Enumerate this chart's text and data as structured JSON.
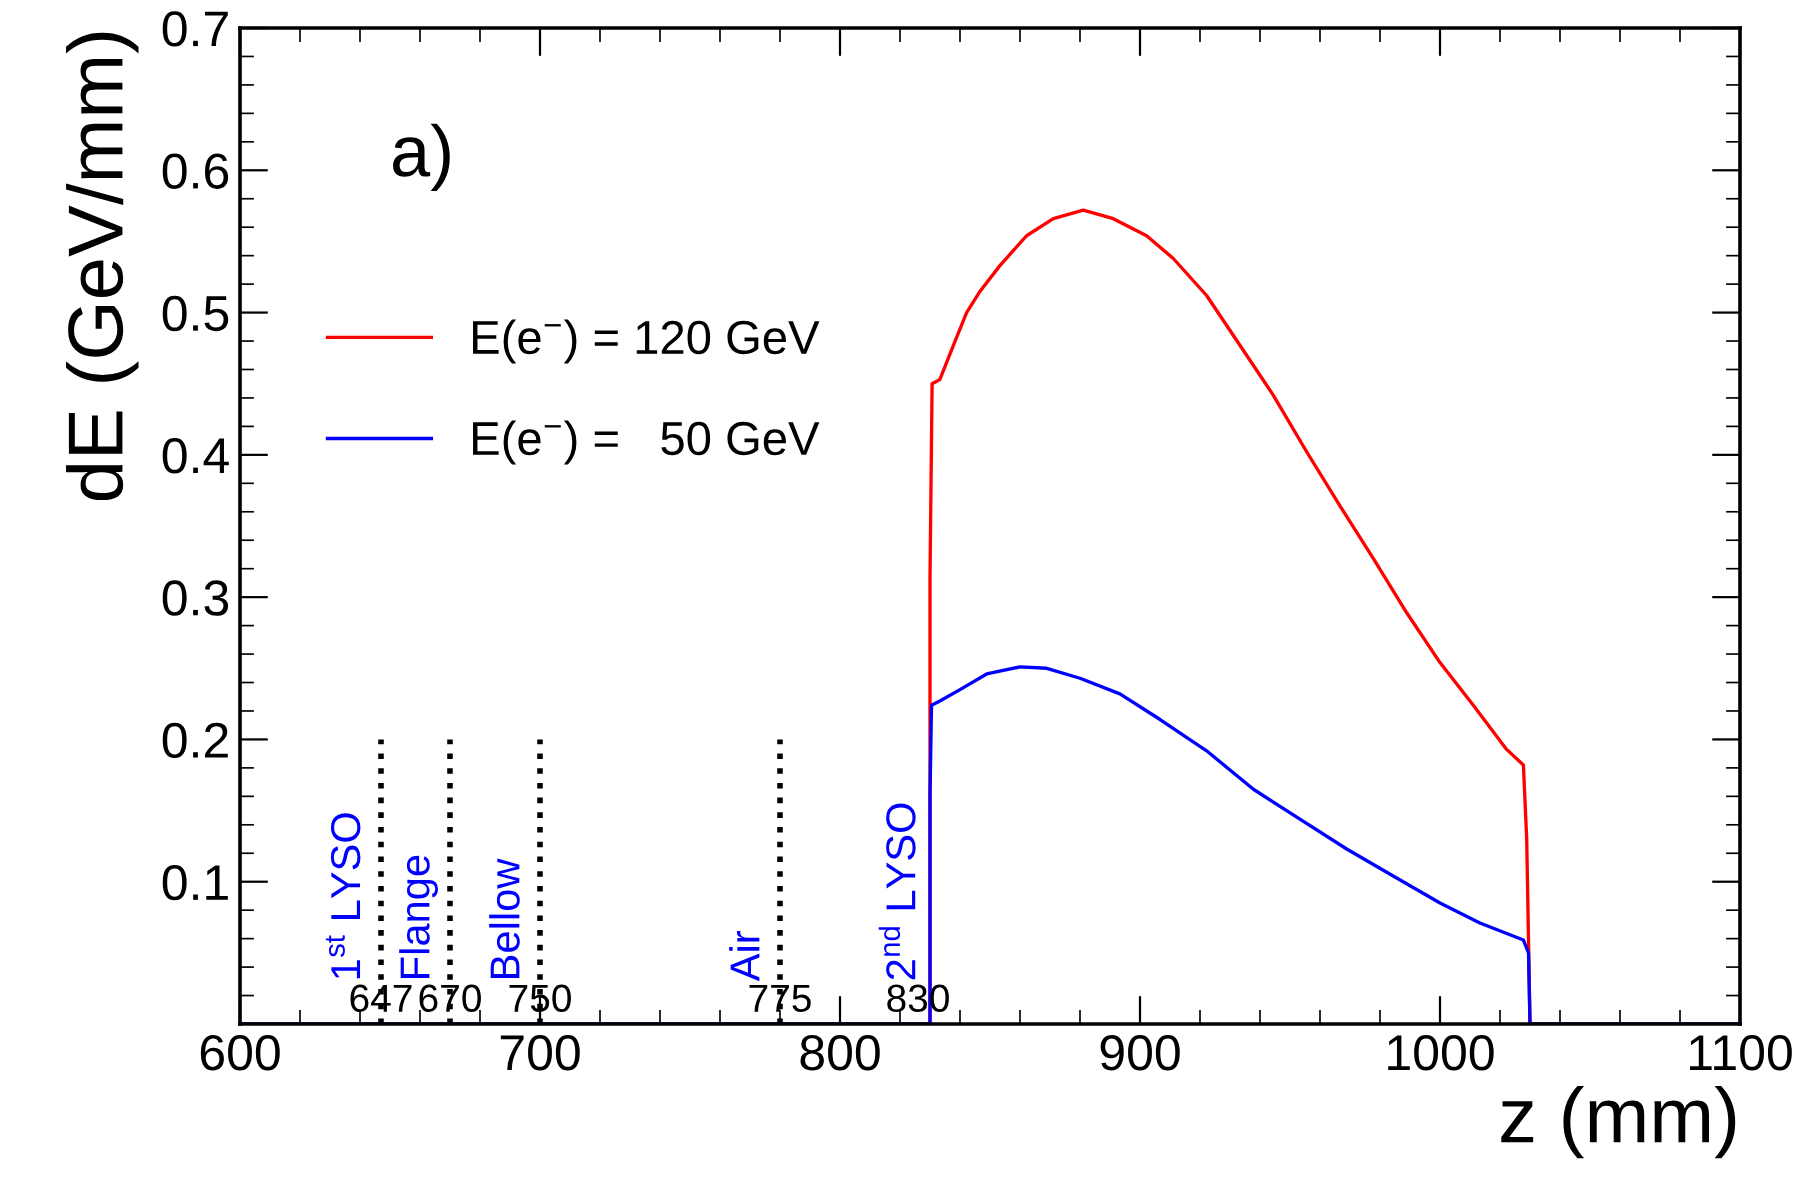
{
  "chart_data": {
    "type": "line",
    "xlabel": "z (mm)",
    "ylabel": "dE (GeV/mm)",
    "xlim": [
      600,
      1100
    ],
    "ylim": [
      0,
      0.7
    ],
    "xticks": [
      600,
      700,
      800,
      900,
      1000,
      1100
    ],
    "yticks": [
      0.1,
      0.2,
      0.3,
      0.4,
      0.5,
      0.6,
      0.7
    ],
    "grid": false,
    "legend": "top left",
    "marker": "none",
    "line_style": "solid",
    "series": [
      {
        "name": "E(e$^{−}$) = 120 GeV",
        "color": "#ff0000",
        "x": [
          600,
          830,
          830,
          830.7,
          833.3,
          837.8,
          842.2,
          846.7,
          853.3,
          862.2,
          871.1,
          881.1,
          891.1,
          902.2,
          911.1,
          922.2,
          933.3,
          944.4,
          955.6,
          966.7,
          977.8,
          988.9,
          1000,
          1011.1,
          1022.2,
          1027.8,
          1028.9,
          1030,
          1100
        ],
        "values": [
          0,
          0,
          0.313,
          0.45,
          0.453,
          0.477,
          0.5,
          0.515,
          0.533,
          0.554,
          0.566,
          0.572,
          0.566,
          0.554,
          0.538,
          0.512,
          0.477,
          0.442,
          0.402,
          0.364,
          0.327,
          0.289,
          0.254,
          0.224,
          0.193,
          0.182,
          0.13,
          0,
          0
        ]
      },
      {
        "name": "E(e$^{−}$) =   50 GeV",
        "color": "#0000ff",
        "x": [
          600,
          830,
          830,
          830.5,
          833.3,
          840,
          848.9,
          860,
          868.9,
          880,
          893.3,
          906.7,
          922.2,
          937.8,
          953.3,
          968.9,
          984.4,
          1000,
          1013.3,
          1027.8,
          1029.5,
          1030,
          1100
        ],
        "values": [
          0,
          0,
          0.16,
          0.224,
          0.227,
          0.235,
          0.246,
          0.251,
          0.25,
          0.243,
          0.232,
          0.214,
          0.192,
          0.165,
          0.144,
          0.123,
          0.104,
          0.085,
          0.071,
          0.059,
          0.05,
          0,
          0
        ]
      }
    ],
    "ref_lines": [
      {
        "axis": "x",
        "value": 647,
        "label": "1$^{st}$ LYSO",
        "color": "#000000",
        "line_style": "dotted"
      },
      {
        "axis": "x",
        "value": 670,
        "label": "Flange",
        "color": "#000000",
        "line_style": "dotted"
      },
      {
        "axis": "x",
        "value": 700,
        "label": "Bellow",
        "color": "#000000",
        "line_style": "dotted"
      },
      {
        "axis": "x",
        "value": 780,
        "label": "Air",
        "color": "#000000",
        "line_style": "dotted"
      }
    ],
    "annotations": [
      "a)",
      {
        "text": "2$^{nd}$ LYSO",
        "x": 830,
        "y": 0.03
      },
      {
        "text": "647",
        "x": 647,
        "y": 0.0
      },
      {
        "text": "670",
        "x": 670,
        "y": 0.0
      },
      {
        "text": "750",
        "x": 700,
        "y": 0.0
      },
      {
        "text": "775",
        "x": 780,
        "y": 0.0
      },
      {
        "text": "830",
        "x": 826,
        "y": 0.0
      }
    ]
  }
}
